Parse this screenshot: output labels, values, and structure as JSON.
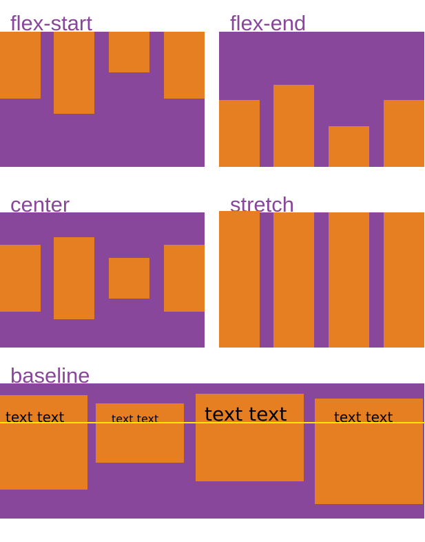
{
  "colors": {
    "container": "#88479a",
    "item": "#e67f22",
    "baseline_line": "#ffe600"
  },
  "sections": [
    {
      "label": "flex-start"
    },
    {
      "label": "flex-end"
    },
    {
      "label": "center"
    },
    {
      "label": "stretch"
    },
    {
      "label": "baseline"
    }
  ],
  "baseline_items": [
    "text text",
    "text text",
    "text text",
    "text text"
  ]
}
